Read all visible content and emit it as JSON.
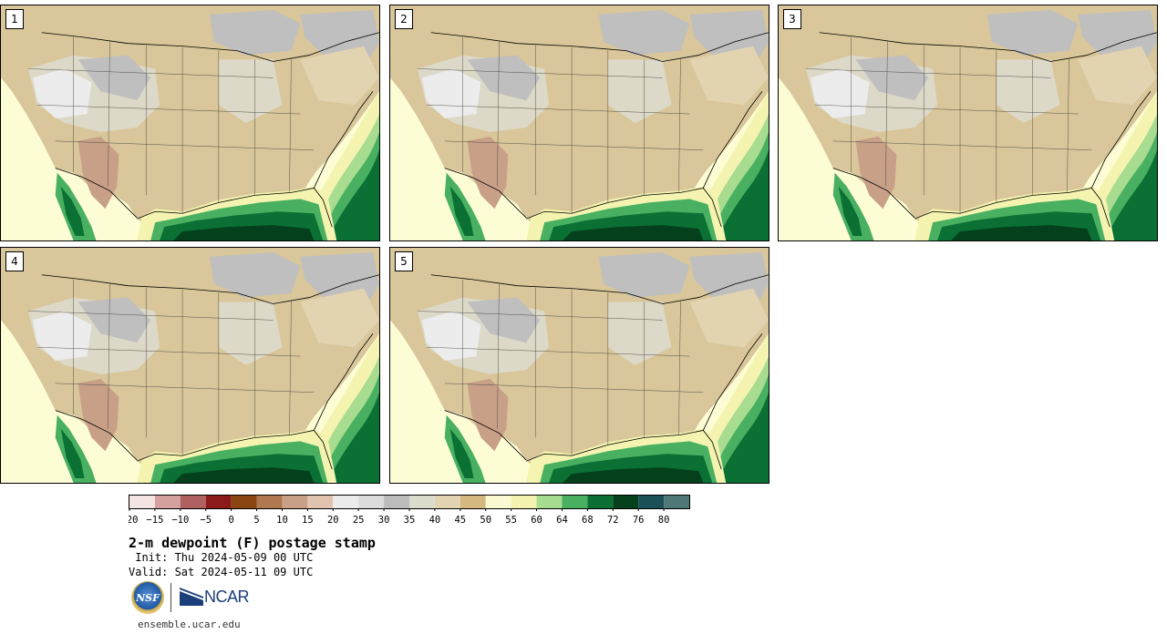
{
  "figure": {
    "title": "2-m dewpoint (F) postage stamp",
    "init": " Init: Thu 2024-05-09 00 UTC",
    "valid": "Valid: Sat 2024-05-11 09 UTC",
    "website": "ensemble.ucar.edu"
  },
  "panels": [
    {
      "label": "1"
    },
    {
      "label": "2"
    },
    {
      "label": "3"
    },
    {
      "label": "4"
    },
    {
      "label": "5"
    }
  ],
  "logos": {
    "nsf_text": "NSF",
    "ncar_text": "NCAR"
  },
  "colorbar": {
    "units": "F",
    "tick_labels": [
      "−20",
      "−15",
      "−10",
      "−5",
      "0",
      "5",
      "10",
      "15",
      "20",
      "25",
      "30",
      "35",
      "40",
      "45",
      "50",
      "55",
      "60",
      "64",
      "68",
      "72",
      "76",
      "80"
    ],
    "colors": [
      "#f4e4e4",
      "#d4a0a0",
      "#b06060",
      "#8c1a1a",
      "#8b4513",
      "#b07850",
      "#c8a088",
      "#e0c4b0",
      "#ececec",
      "#dcdcdc",
      "#bcbcbc",
      "#dcdccc",
      "#e2d4b0",
      "#d4b880",
      "#fafad2",
      "#f4f4b0",
      "#a8dc90",
      "#48b060",
      "#0a7034",
      "#04401c",
      "#1c5058",
      "#507878"
    ]
  },
  "map_colors": {
    "ocean_dry": "#fdfdd5",
    "land_tan": "#d9c69a",
    "land_light": "#ddd9c8",
    "land_gray": "#bfbfbf",
    "land_white": "#ececec",
    "land_brown": "#c8a088",
    "moist_light": "#a8dc90",
    "moist_green": "#48b060",
    "moist_dark": "#0a7034",
    "gulf_darkest": "#04401c"
  }
}
